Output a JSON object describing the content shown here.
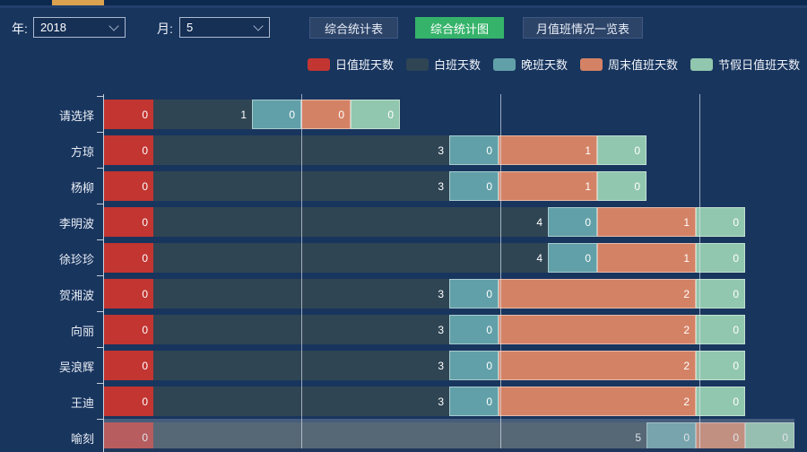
{
  "window": {
    "bg": "#18355e"
  },
  "topbar": {
    "track_color": "#0c2950",
    "thumb_color": "#dba24f"
  },
  "filters": {
    "year_label": "年:",
    "year_value": "2018",
    "month_label": "月:",
    "month_value": "5"
  },
  "toolbar": {
    "buttons": [
      {
        "label": "综合统计表",
        "active": false
      },
      {
        "label": "综合统计图",
        "active": true
      },
      {
        "label": "月值班情况一览表",
        "active": false
      }
    ]
  },
  "legend": {
    "items": [
      {
        "label": "日值班天数",
        "color": "#c23531"
      },
      {
        "label": "白班天数",
        "color": "#2f4554"
      },
      {
        "label": "晚班天数",
        "color": "#61a0a8"
      },
      {
        "label": "周末值班天数",
        "color": "#d48265"
      },
      {
        "label": "节假日值班天数",
        "color": "#91c7ae"
      }
    ]
  },
  "chart_data": {
    "type": "bar",
    "orientation": "horizontal",
    "stacked": true,
    "legend_position": "top",
    "grid": true,
    "value_labels_shown": true,
    "categories": [
      "请选择",
      "方琼",
      "杨柳",
      "李明波",
      "徐珍珍",
      "贺湘波",
      "向丽",
      "吴浪辉",
      "王迪",
      "喻刻"
    ],
    "series": [
      {
        "name": "日值班天数",
        "color": "#c23531",
        "bordered": false,
        "values": [
          0,
          0,
          0,
          0,
          0,
          0,
          0,
          0,
          0,
          0
        ]
      },
      {
        "name": "白班天数",
        "color": "#2f4554",
        "bordered": false,
        "values": [
          1,
          3,
          3,
          4,
          4,
          3,
          3,
          3,
          3,
          5
        ]
      },
      {
        "name": "晚班天数",
        "color": "#61a0a8",
        "bordered": true,
        "values": [
          0,
          0,
          0,
          0,
          0,
          0,
          0,
          0,
          0,
          0
        ]
      },
      {
        "name": "周末值班天数",
        "color": "#d48265",
        "bordered": true,
        "values": [
          0,
          1,
          1,
          1,
          1,
          2,
          2,
          2,
          2,
          0
        ]
      },
      {
        "name": "节假日值班天数",
        "color": "#91c7ae",
        "bordered": true,
        "values": [
          0,
          0,
          0,
          0,
          0,
          0,
          0,
          0,
          0,
          0
        ]
      }
    ],
    "dimmed_category": "喻刻",
    "notes": "segment width renders as max(1, 2×value) units; last row (喻刻) shown dimmed by hover shadow and clipped at viewport bottom"
  }
}
